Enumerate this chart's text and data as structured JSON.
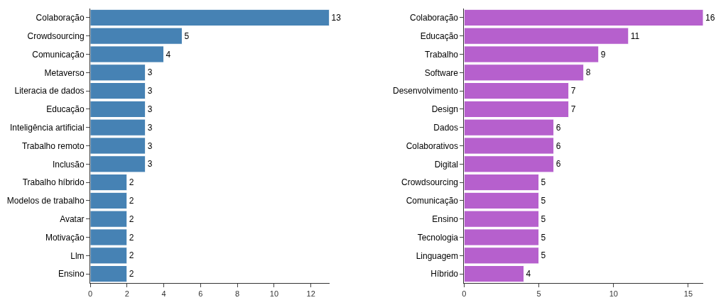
{
  "chart_data": [
    {
      "type": "bar",
      "orientation": "horizontal",
      "categories": [
        "Colaboração",
        "Crowdsourcing",
        "Comunicação",
        "Metaverso",
        "Literacia de dados",
        "Educação",
        "Inteligência artificial",
        "Trabalho remoto",
        "Inclusão",
        "Trabalho híbrido",
        "Modelos de trabalho",
        "Avatar",
        "Motivação",
        "Llm",
        "Ensino"
      ],
      "values": [
        13,
        5,
        4,
        3,
        3,
        3,
        3,
        3,
        3,
        2,
        2,
        2,
        2,
        2,
        2
      ],
      "color": "#4682b4",
      "data_labels": true,
      "xlim": [
        0,
        13
      ],
      "xticks": [
        0,
        2,
        4,
        6,
        8,
        10,
        12
      ]
    },
    {
      "type": "bar",
      "orientation": "horizontal",
      "categories": [
        "Colaboração",
        "Educação",
        "Trabalho",
        "Software",
        "Desenvolvimento",
        "Design",
        "Dados",
        "Colaborativos",
        "Digital",
        "Crowdsourcing",
        "Comunicação",
        "Ensino",
        "Tecnologia",
        "Linguagem",
        "Híbrido"
      ],
      "values": [
        16,
        11,
        9,
        8,
        7,
        7,
        6,
        6,
        6,
        5,
        5,
        5,
        5,
        5,
        4
      ],
      "color": "#b660cd",
      "data_labels": true,
      "xlim": [
        0,
        16
      ],
      "xticks": [
        0,
        5,
        10,
        15
      ]
    }
  ]
}
